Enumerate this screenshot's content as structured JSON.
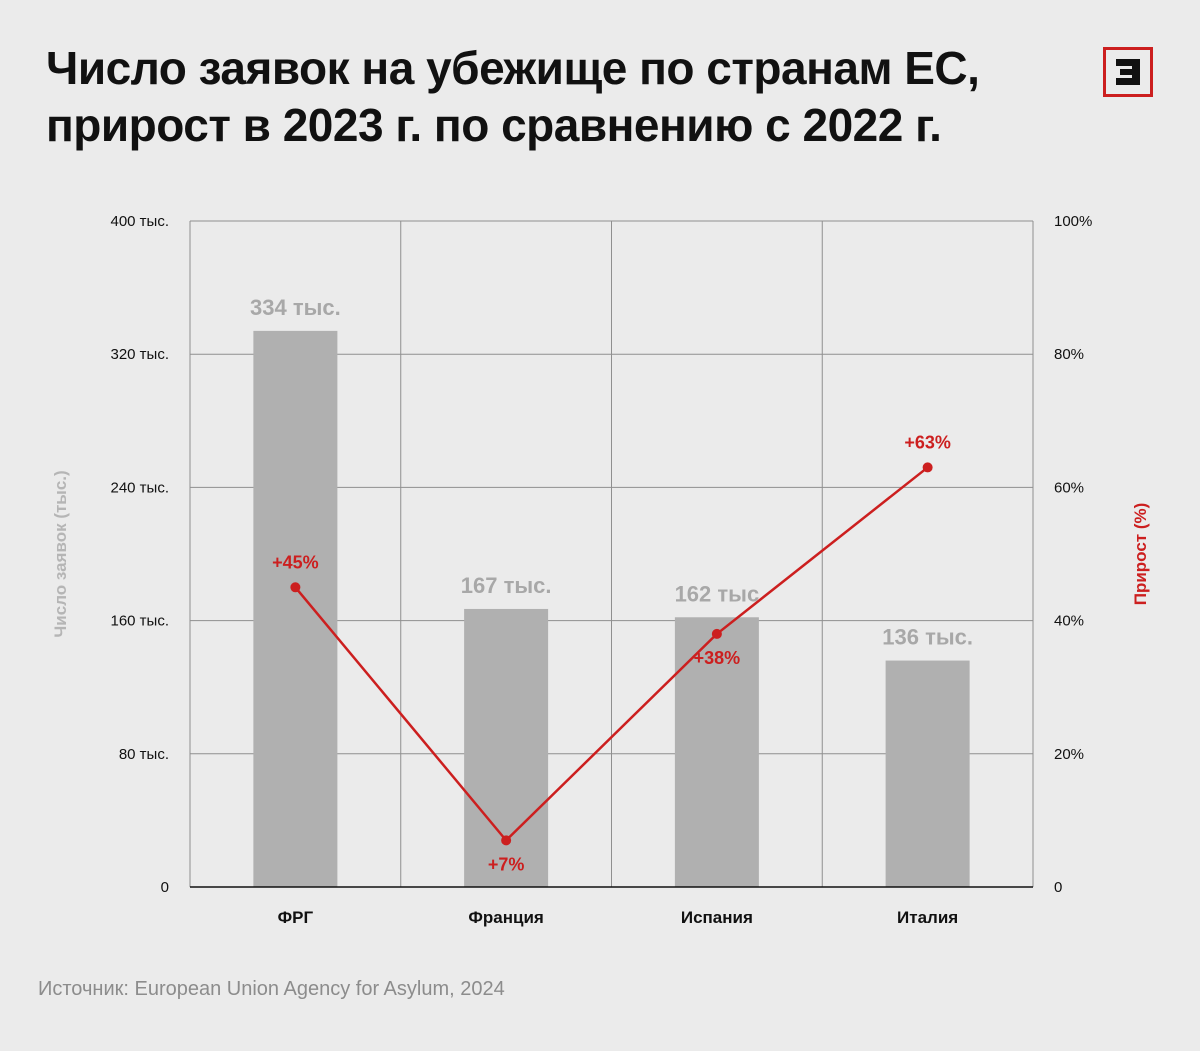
{
  "title": {
    "line1": "Число заявок на убежище по странам ЕС,",
    "line2": "прирост в 2023 г. по сравнению с 2022 г."
  },
  "logo": {
    "icon": "publisher-logo-icon",
    "color": "#cc1f1f"
  },
  "source": "Источник: European Union Agency for Asylum, 2024",
  "chart_data": {
    "type": "bar",
    "categories": [
      "ФРГ",
      "Франция",
      "Испания",
      "Италия"
    ],
    "series": [
      {
        "type": "bar",
        "axis": "left",
        "color": "#b0b0b0",
        "values": [
          334,
          167,
          162,
          136
        ],
        "labels": [
          "334 тыс.",
          "167 тыс.",
          "162 тыс",
          "136 тыс."
        ]
      },
      {
        "type": "line",
        "axis": "right",
        "color": "#cc1f1f",
        "values": [
          45,
          7,
          38,
          63
        ],
        "labels": [
          "+45%",
          "+7%",
          "+38%",
          "+63%"
        ]
      }
    ],
    "ylabel": "Число заявок (тыс.)",
    "ylabel_right": "Прирост (%)",
    "ylim": [
      0,
      400
    ],
    "ylim_right": [
      0,
      100
    ],
    "yticks": [
      0,
      80,
      160,
      240,
      320,
      400
    ],
    "ytick_labels": [
      "0",
      "80 тыс.",
      "160 тыс.",
      "240 тыс.",
      "320 тыс.",
      "400 тыс."
    ],
    "yticks_right": [
      0,
      20,
      40,
      60,
      80,
      100
    ],
    "ytick_labels_right": [
      "0",
      "20%",
      "40%",
      "60%",
      "80%",
      "100%"
    ],
    "grid": true,
    "legend": "none"
  }
}
